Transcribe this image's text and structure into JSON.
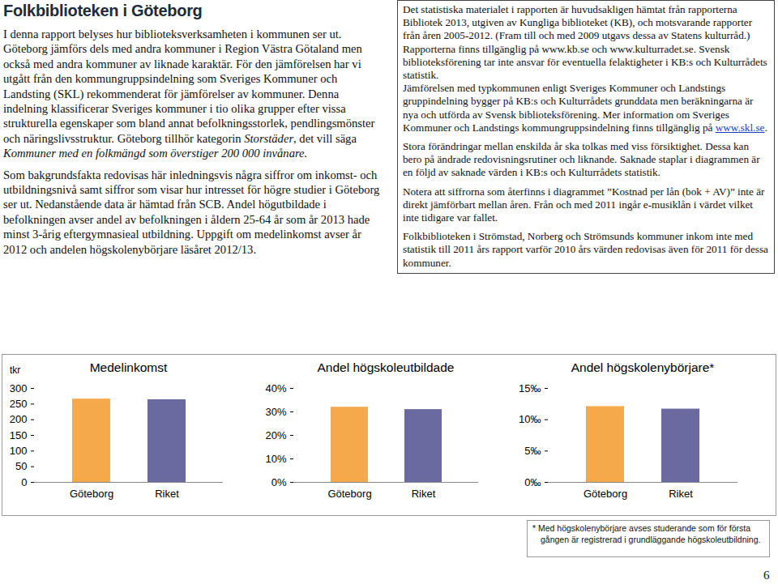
{
  "header": {
    "title": "Folkbiblioteken i Göteborg"
  },
  "left_column": {
    "paragraphs": [
      [
        {
          "text": "I denna rapport belyses hur biblioteksverksamheten i kommunen ser ut. Göteborg jämförs dels med andra kommuner i Region Västra Götaland men också med andra kommuner av liknade karaktär. För den jämförelsen har vi utgått från den kommungruppsindelning som Sveriges Kommuner och Landsting (SKL) rekommenderat för jämförelser av kommuner. Denna indelning klassificerar Sveriges kommuner i tio olika grupper efter vissa strukturella egenskaper som bland annat befolkningsstorlek, pendlingsmönster och näringslivsstruktur. Göteborg tillhör kategorin "
        },
        {
          "text": "Storstäder",
          "italic": true
        },
        {
          "text": ", det vill säga "
        },
        {
          "text": "Kommuner med en folkmängd som överstiger 200 000 invånare.",
          "italic": true
        }
      ],
      [
        {
          "text": "Som bakgrundsfakta redovisas här inledningsvis några siffror om inkomst- och utbildningsnivå samt siffror som visar hur intresset för högre studier i Göteborg ser ut. Nedanstående data är hämtad från SCB. Andel högutbildade i befolkningen avser andel av befolkningen i åldern 25-64 år som år 2013 hade minst 3-årig eftergymnasieal utbildning. Uppgift om medelinkomst avser år 2012 och andelen högskolenybörjare läsåret 2012/13."
        }
      ]
    ]
  },
  "info_box": {
    "paragraphs": [
      [
        {
          "text": "Det statistiska materialet i rapporten är huvudsakligen hämtat från rapporterna Bibliotek 2013, utgiven av Kungliga biblioteket (KB), och motsvarande rapporter från åren 2005-2012. (Fram till och med 2009 utgavs dessa av Statens kulturråd.) Rapporterna finns tillgänglig på www.kb.se och www.kulturradet.se. Svensk biblioteksförening tar inte ansvar för eventuella felaktigheter i KB:s och Kulturrådets statistik."
        }
      ],
      [
        {
          "text": "Jämförelsen med typkommunen enligt Sveriges Kommuner och Landstings gruppindelning bygger på KB:s och Kulturrådets grunddata men beräkningarna är nya och utförda av Svensk biblioteksförening. Mer information om Sveriges Kommuner och Landstings kommungruppsindelning finns tillgänglig på "
        },
        {
          "text": "www.skl.se",
          "link": true
        },
        {
          "text": "."
        }
      ],
      [
        {
          "text": "Stora förändringar mellan enskilda år ska tolkas med viss försiktighet. Dessa kan bero på ändrade redovisningsrutiner och liknande. Saknade staplar i diagrammen är en följd av saknade värden i KB:s och Kulturrådets statistik."
        }
      ],
      [
        {
          "text": "Notera att siffrorna som återfinns i diagrammet ”Kostnad per lån (bok + AV)” inte är direkt jämförbart mellan åren. Från och med 2011 ingår e-musiklån i värdet vilket inte tidigare var fallet."
        }
      ],
      [
        {
          "text": "Folkbiblioteken i Strömstad, Norberg och Strömsunds kommuner inkom inte med statistik till 2011 års rapport varför 2010 års värden redovisas även för 2011 för dessa kommuner."
        }
      ]
    ]
  },
  "chart_data": [
    {
      "type": "bar",
      "title": "Medelinkomst",
      "y_label": "tkr",
      "categories": [
        "Göteborg",
        "Riket"
      ],
      "values": [
        266,
        264
      ],
      "colors": [
        "#f6a94b",
        "#6b6aa0"
      ],
      "ylim": [
        0,
        300
      ],
      "yticks": [
        0,
        50,
        100,
        150,
        200,
        250,
        300
      ]
    },
    {
      "type": "bar",
      "title": "Andel högskoleutbildade",
      "categories": [
        "Göteborg",
        "Riket"
      ],
      "values": [
        32,
        31
      ],
      "colors": [
        "#f6a94b",
        "#6b6aa0"
      ],
      "ylim": [
        0,
        40
      ],
      "yticks": [
        {
          "value": 0,
          "label": "0%"
        },
        {
          "value": 10,
          "label": "10%"
        },
        {
          "value": 20,
          "label": "20%"
        },
        {
          "value": 30,
          "label": "30%"
        },
        {
          "value": 40,
          "label": "40%"
        }
      ]
    },
    {
      "type": "bar",
      "title": "Andel högskolenybörjare*",
      "categories": [
        "Göteborg",
        "Riket"
      ],
      "values": [
        12.1,
        11.7
      ],
      "colors": [
        "#f6a94b",
        "#6b6aa0"
      ],
      "ylim": [
        0,
        15
      ],
      "yticks": [
        {
          "value": 0,
          "label": "0‰"
        },
        {
          "value": 5,
          "label": "5‰"
        },
        {
          "value": 10,
          "label": "10‰"
        },
        {
          "value": 15,
          "label": "15‰"
        }
      ]
    }
  ],
  "footnote": {
    "lines": [
      "*  Med högskolenybörjare avses studerande som för första",
      "gången är registrerad i grundläggande högskoleutbildning."
    ]
  },
  "page_number": "6"
}
